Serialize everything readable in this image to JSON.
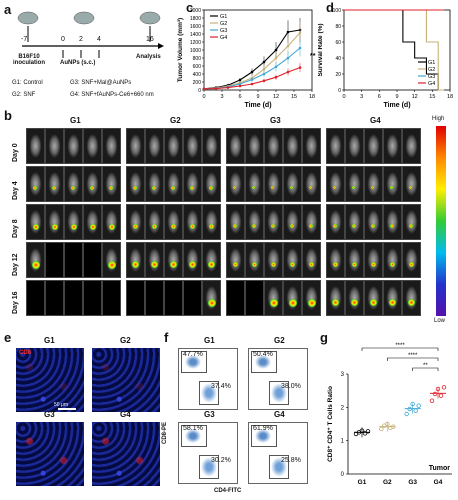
{
  "panel_letters": {
    "a": "a",
    "b": "b",
    "c": "c",
    "d": "d",
    "e": "e",
    "f": "f",
    "g": "g"
  },
  "panel_a": {
    "timepoints": [
      "-7",
      "0",
      "2",
      "4",
      "16"
    ],
    "labels": {
      "inoculation": "B16F10\ninoculation",
      "aunps": "AuNPs (s.c.)",
      "analysis": "Analysis"
    },
    "legend": [
      "G1: Control",
      "G2: SNF",
      "G3: SNF+Mal@AuNPs",
      "G4: SNF+fAuNPs-Ce6+660 nm"
    ]
  },
  "chart_data": [
    {
      "panel": "c",
      "type": "line",
      "xlabel": "Time (d)",
      "ylabel": "Tumor Volume (mm³)",
      "xlim": [
        0,
        18
      ],
      "ylim": [
        0,
        2000
      ],
      "xticks": [
        0,
        3,
        6,
        9,
        12,
        15,
        18
      ],
      "yticks": [
        0,
        200,
        400,
        600,
        800,
        1000,
        1200,
        1400,
        1600,
        1800,
        2000
      ],
      "legend_position": "top-left",
      "significance": "**",
      "series": [
        {
          "name": "G1",
          "color": "#000000",
          "x": [
            0,
            2,
            4,
            6,
            8,
            10,
            12,
            14,
            16
          ],
          "values": [
            30,
            60,
            120,
            250,
            450,
            700,
            1000,
            1450,
            1500
          ]
        },
        {
          "name": "G2",
          "color": "#c9b27a",
          "x": [
            0,
            2,
            4,
            6,
            8,
            10,
            12,
            14,
            16
          ],
          "values": [
            30,
            50,
            100,
            180,
            300,
            520,
            800,
            1100,
            1430
          ]
        },
        {
          "name": "G3",
          "color": "#3fa7d6",
          "x": [
            0,
            2,
            4,
            6,
            8,
            10,
            12,
            14,
            16
          ],
          "values": [
            30,
            40,
            80,
            150,
            260,
            400,
            580,
            800,
            1050
          ]
        },
        {
          "name": "G4",
          "color": "#e0202a",
          "x": [
            0,
            2,
            4,
            6,
            8,
            10,
            12,
            14,
            16
          ],
          "values": [
            30,
            35,
            60,
            100,
            150,
            230,
            320,
            450,
            560
          ]
        }
      ]
    },
    {
      "panel": "d",
      "type": "line",
      "xlabel": "Time (d)",
      "ylabel": "Survival Rate (%)",
      "xlim": [
        0,
        18
      ],
      "ylim": [
        0,
        100
      ],
      "xticks": [
        0,
        3,
        6,
        9,
        12,
        15,
        18
      ],
      "yticks": [
        0,
        20,
        40,
        60,
        80,
        100
      ],
      "legend_position": "bottom-right",
      "series": [
        {
          "name": "G1",
          "color": "#000000",
          "x": [
            0,
            10,
            12,
            14,
            16
          ],
          "values": [
            100,
            60,
            40,
            20,
            0
          ]
        },
        {
          "name": "G2",
          "color": "#c9b27a",
          "x": [
            0,
            14,
            16
          ],
          "values": [
            100,
            60,
            0
          ]
        },
        {
          "name": "G3",
          "color": "#3fa7d6",
          "x": [
            0,
            16
          ],
          "values": [
            100,
            100
          ]
        },
        {
          "name": "G4",
          "color": "#e0202a",
          "x": [
            0,
            16
          ],
          "values": [
            100,
            100
          ]
        }
      ]
    },
    {
      "panel": "g",
      "type": "scatter",
      "ylabel": "CD8⁺ CD4⁺ T Cells Ratio",
      "categories": [
        "G1",
        "G2",
        "G3",
        "G4"
      ],
      "ylim": [
        0,
        3
      ],
      "yticks": [
        0,
        1,
        2,
        3
      ],
      "annotation": "Tumor",
      "colors": [
        "#000000",
        "#c9b27a",
        "#3fa7d6",
        "#e0202a"
      ],
      "values": [
        [
          1.2,
          1.25,
          1.3,
          1.22,
          1.28
        ],
        [
          1.35,
          1.45,
          1.5,
          1.38,
          1.42
        ],
        [
          1.8,
          1.95,
          2.1,
          1.9,
          2.05
        ],
        [
          2.2,
          2.4,
          2.55,
          2.35,
          2.6
        ]
      ],
      "significance": [
        "****",
        "****",
        "**"
      ]
    }
  ],
  "panel_b": {
    "groups": [
      "G1",
      "G2",
      "G3",
      "G4"
    ],
    "days": [
      "Day 0",
      "Day 4",
      "Day 8",
      "Day 12",
      "Day 16"
    ],
    "scale_high": "High",
    "scale_low": "Low"
  },
  "panel_e": {
    "stain": "CD8",
    "groups": [
      "G1",
      "G2",
      "G3",
      "G4"
    ],
    "scalebar": "50 μm"
  },
  "panel_f": {
    "groups": [
      {
        "name": "G1",
        "top": "47.7%",
        "bottom": "37.4%"
      },
      {
        "name": "G2",
        "top": "50.4%",
        "bottom": "38.0%"
      },
      {
        "name": "G3",
        "top": "58.1%",
        "bottom": "30.2%"
      },
      {
        "name": "G4",
        "top": "61.9%",
        "bottom": "25.8%"
      }
    ],
    "ylabel": "CD8-PE",
    "xlabel": "CD4-FITC"
  }
}
